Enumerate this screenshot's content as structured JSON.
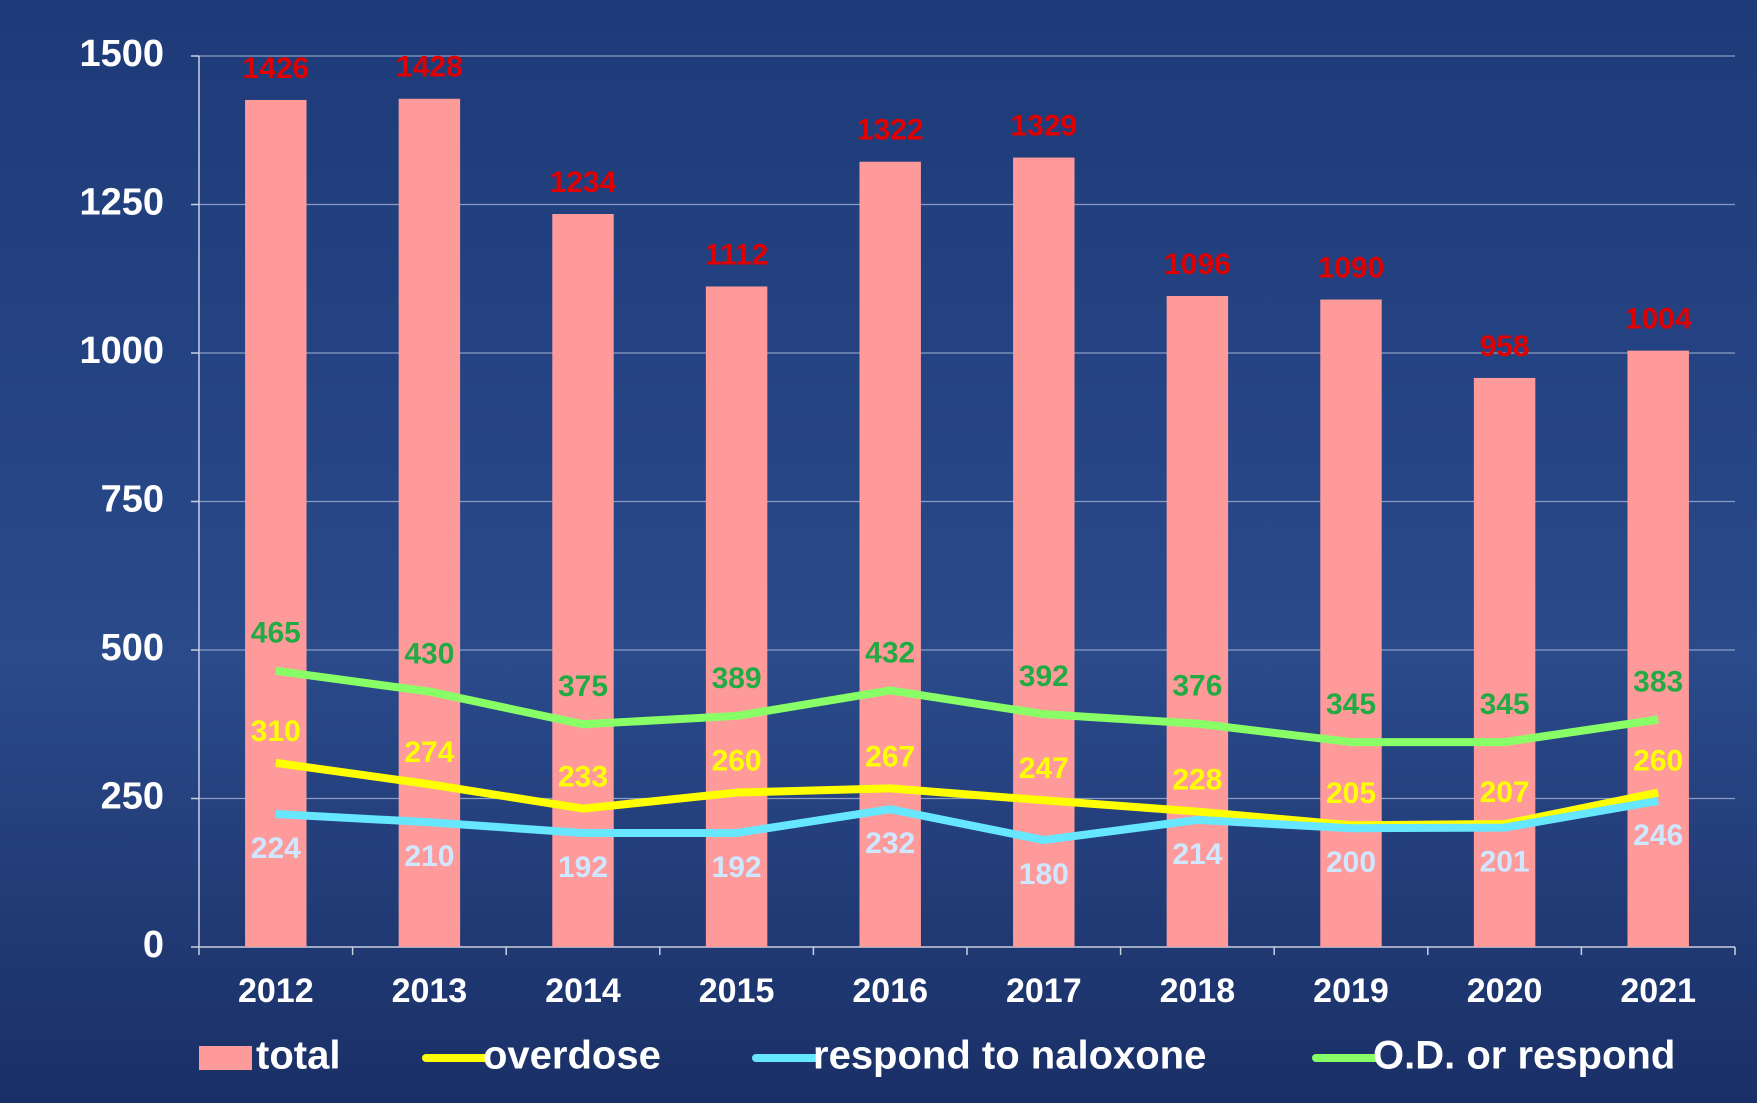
{
  "chart_data": {
    "type": "combo",
    "categories": [
      "2012",
      "2013",
      "2014",
      "2015",
      "2016",
      "2017",
      "2018",
      "2019",
      "2020",
      "2021"
    ],
    "series": [
      {
        "name": "total",
        "type": "bar",
        "color": "#ff9a9a",
        "label_color": "#e00000",
        "values": [
          1426,
          1428,
          1234,
          1112,
          1322,
          1329,
          1096,
          1090,
          958,
          1004
        ]
      },
      {
        "name": "overdose",
        "type": "line",
        "color": "#ffff00",
        "label_color": "#ffff00",
        "values": [
          310,
          274,
          233,
          260,
          267,
          247,
          228,
          205,
          207,
          260
        ]
      },
      {
        "name": "respond to naloxone",
        "type": "line",
        "color": "#66e6ff",
        "label_color": "#cfe8ff",
        "values": [
          224,
          210,
          192,
          192,
          232,
          180,
          214,
          200,
          201,
          246
        ]
      },
      {
        "name": "O.D. or respond",
        "type": "line",
        "color": "#88ff66",
        "label_color": "#22aa44",
        "values": [
          465,
          430,
          375,
          389,
          432,
          392,
          376,
          345,
          345,
          383
        ]
      }
    ],
    "ylim": [
      0,
      1500
    ],
    "yticks": [
      0,
      250,
      500,
      750,
      1000,
      1250,
      1500
    ],
    "grid": true,
    "legend": "bottom"
  }
}
